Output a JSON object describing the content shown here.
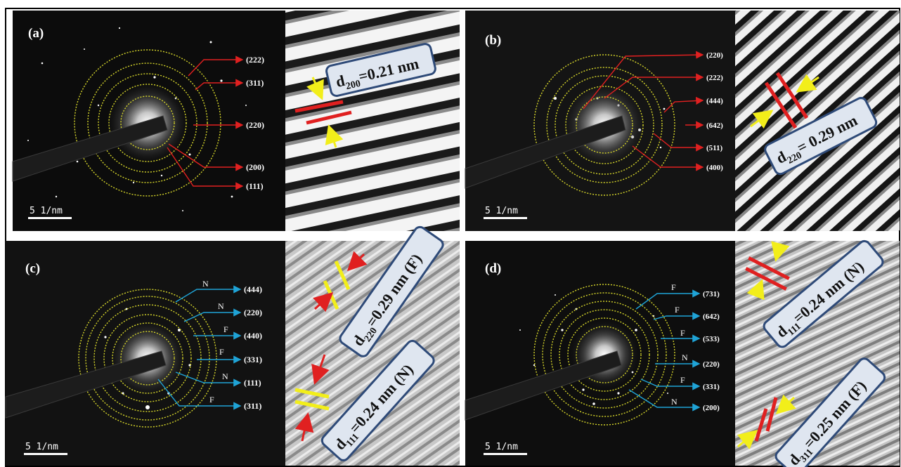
{
  "panels": {
    "a": {
      "label": "(a)",
      "scale_bar": "5 1/nm",
      "planes": [
        "(222)",
        "(311)",
        "(220)",
        "(200)",
        "(111)"
      ],
      "spacing_d": "d",
      "spacing_sub": "200",
      "spacing_value": "=0.21 nm"
    },
    "b": {
      "label": "(b)",
      "scale_bar": "5 1/nm",
      "planes": [
        "(220)",
        "(222)",
        "(444)",
        "(642)",
        "(511)",
        "(400)"
      ],
      "spacing_d": "d",
      "spacing_sub": "220",
      "spacing_value": "= 0.29 nm"
    },
    "c": {
      "label": "(c)",
      "scale_bar": "5 1/nm",
      "planes": [
        "(444)",
        "(220)",
        "(440)",
        "(331)",
        "(111)",
        "(311)"
      ],
      "phases": [
        "N",
        "N",
        "F",
        "F",
        "N",
        "F"
      ],
      "spacing1_d": "d",
      "spacing1_sub": "220",
      "spacing1_value": "=0.29 nm (F)",
      "spacing2_d": "d",
      "spacing2_sub": "111",
      "spacing2_value": "=0.24 nm (N)"
    },
    "d": {
      "label": "(d)",
      "scale_bar": "5 1/nm",
      "planes": [
        "(731)",
        "(642)",
        "(533)",
        "(220)",
        "(331)",
        "(200)"
      ],
      "phases": [
        "F",
        "F",
        "F",
        "N",
        "F",
        "N"
      ],
      "spacing1_d": "d",
      "spacing1_sub": "111",
      "spacing1_value": "=0.24 nm (N)",
      "spacing2_d": "d",
      "spacing2_sub": "311",
      "spacing2_value": "=0.25 nm (F)"
    }
  },
  "colors": {
    "ring": "#d6d62a",
    "arrow_red": "#e02020",
    "arrow_blue": "#1fa3d6",
    "marker_yellow": "#f2ee1a"
  }
}
